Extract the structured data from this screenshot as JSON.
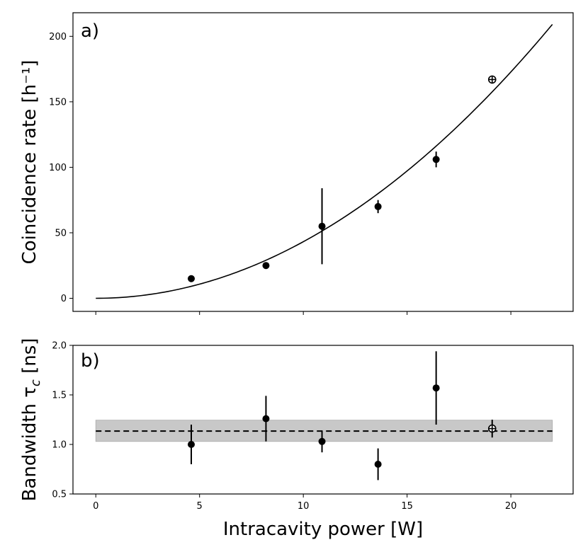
{
  "chart_data": [
    {
      "panel": "a)",
      "type": "scatter",
      "xlabel": "Intracavity power [W]",
      "ylabel": "Coincidence rate [h⁻¹]",
      "xlim": [
        -1.1,
        23
      ],
      "ylim": [
        -10,
        218
      ],
      "xticks": [
        0,
        5,
        10,
        15,
        20
      ],
      "yticks": [
        0,
        50,
        100,
        150,
        200
      ],
      "ytick_labels": [
        "0",
        "50",
        "100",
        "150",
        "200"
      ],
      "points": [
        {
          "x": 4.6,
          "y": 15,
          "yerr": 0,
          "hollow": false
        },
        {
          "x": 8.2,
          "y": 25,
          "yerr": 0,
          "hollow": false
        },
        {
          "x": 10.9,
          "y": 55,
          "yerr": 29,
          "hollow": false
        },
        {
          "x": 13.6,
          "y": 70,
          "yerr": 5,
          "hollow": false
        },
        {
          "x": 16.4,
          "y": 106,
          "yerr": 6,
          "hollow": false
        },
        {
          "x": 19.1,
          "y": 167,
          "yerr": 3,
          "hollow": true
        }
      ],
      "fit": {
        "style": "solid",
        "model": "quadratic",
        "coefficient": 0.432,
        "xrange": [
          0,
          22
        ]
      }
    },
    {
      "panel": "b)",
      "type": "scatter",
      "xlabel": "Intracavity power [W]",
      "ylabel": "Bandwidth τ",
      "ylabel_sub": "c",
      "ylabel_unit": " [ns]",
      "xlim": [
        -1.1,
        23
      ],
      "ylim": [
        0.5,
        2.0
      ],
      "xticks": [
        0,
        5,
        10,
        15,
        20
      ],
      "xtick_labels": [
        "0",
        "5",
        "10",
        "15",
        "20"
      ],
      "yticks": [
        0.5,
        1.0,
        1.5,
        2.0
      ],
      "ytick_labels": [
        "0.5",
        "1.0",
        "1.5",
        "2.0"
      ],
      "points": [
        {
          "x": 4.6,
          "y": 1.0,
          "yerr": 0.2,
          "hollow": false
        },
        {
          "x": 8.2,
          "y": 1.26,
          "yerr": 0.23,
          "hollow": false
        },
        {
          "x": 10.9,
          "y": 1.03,
          "yerr": 0.11,
          "hollow": false
        },
        {
          "x": 13.6,
          "y": 0.8,
          "yerr": 0.16,
          "hollow": false
        },
        {
          "x": 16.4,
          "y": 1.57,
          "yerr": 0.37,
          "hollow": false
        },
        {
          "x": 19.1,
          "y": 1.16,
          "yerr": 0.09,
          "hollow": true
        }
      ],
      "mean": {
        "value": 1.135,
        "style": "dashed",
        "xrange": [
          0,
          22
        ]
      },
      "band": {
        "low": 1.03,
        "high": 1.245,
        "color": "#c8c8c8",
        "xrange": [
          0,
          22
        ]
      }
    }
  ]
}
